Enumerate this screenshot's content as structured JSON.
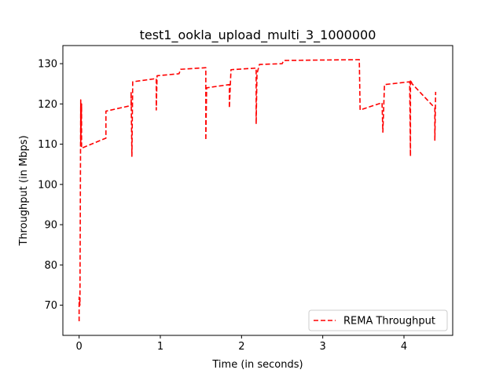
{
  "chart_data": {
    "type": "line",
    "title": "test1_ookla_upload_multi_3_1000000",
    "xlabel": "Time (in seconds)",
    "ylabel": "Throughput (in Mbps)",
    "xlim": [
      -0.2,
      4.6
    ],
    "ylim": [
      62.5,
      134.5
    ],
    "xticks": [
      0,
      1,
      2,
      3,
      4
    ],
    "yticks": [
      70,
      80,
      90,
      100,
      110,
      120,
      130
    ],
    "legend_position": "lower-right",
    "grid": false,
    "series": [
      {
        "name": "REMA Throughput",
        "color": "#ff0000",
        "style": "dashed",
        "points": [
          [
            0.0,
            66.0
          ],
          [
            0.0,
            72.0
          ],
          [
            0.01,
            70.0
          ],
          [
            0.02,
            121.0
          ],
          [
            0.02,
            110.0
          ],
          [
            0.03,
            120.0
          ],
          [
            0.03,
            109.0
          ],
          [
            0.33,
            111.5
          ],
          [
            0.33,
            118.2
          ],
          [
            0.64,
            119.6
          ],
          [
            0.64,
            123.0
          ],
          [
            0.65,
            107.0
          ],
          [
            0.66,
            125.5
          ],
          [
            0.95,
            126.3
          ],
          [
            0.95,
            118.5
          ],
          [
            0.96,
            127.0
          ],
          [
            1.23,
            127.5
          ],
          [
            1.25,
            128.6
          ],
          [
            1.56,
            129.0
          ],
          [
            1.56,
            111.0
          ],
          [
            1.57,
            124.0
          ],
          [
            1.85,
            124.8
          ],
          [
            1.85,
            119.0
          ],
          [
            1.87,
            128.5
          ],
          [
            2.18,
            128.9
          ],
          [
            2.18,
            115.0
          ],
          [
            2.19,
            127.5
          ],
          [
            2.22,
            129.8
          ],
          [
            2.5,
            130.0
          ],
          [
            2.52,
            130.8
          ],
          [
            3.45,
            131.0
          ],
          [
            3.46,
            118.5
          ],
          [
            3.73,
            120.3
          ],
          [
            3.74,
            113.0
          ],
          [
            3.76,
            124.8
          ],
          [
            4.07,
            125.5
          ],
          [
            4.08,
            107.0
          ],
          [
            4.08,
            126.0
          ],
          [
            4.1,
            125.0
          ],
          [
            4.38,
            119.0
          ],
          [
            4.38,
            111.0
          ],
          [
            4.39,
            123.0
          ]
        ]
      }
    ]
  }
}
